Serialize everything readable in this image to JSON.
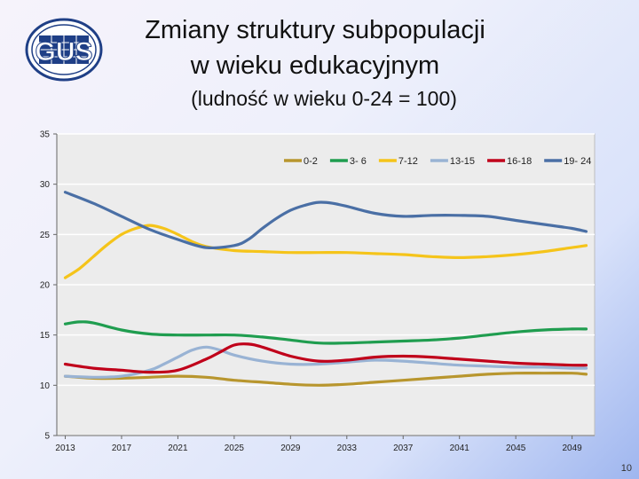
{
  "header": {
    "title_line1": "Zmiany struktury subpopulacji",
    "title_line2": "w wieku edukacyjnym",
    "subtitle": "(ludność w wieku 0-24 = 100)",
    "logo_text": "GUS"
  },
  "page_number": "10",
  "colors": {
    "plot_bg": "#ececec",
    "grid": "#ffffff"
  },
  "chart_data": {
    "type": "line",
    "title": "",
    "xlabel": "",
    "ylabel": "",
    "ylim": [
      5,
      35
    ],
    "yticks": [
      5,
      10,
      15,
      20,
      25,
      30,
      35
    ],
    "xlim": [
      2012.4,
      2050.6
    ],
    "xticks": [
      2013,
      2017,
      2021,
      2025,
      2029,
      2033,
      2037,
      2041,
      2045,
      2049
    ],
    "grid": true,
    "legend_position": "top-right",
    "series": [
      {
        "name": "0-2",
        "color": "#b8962e",
        "x": [
          2013,
          2015,
          2017,
          2019,
          2021,
          2023,
          2025,
          2027,
          2029,
          2031,
          2033,
          2035,
          2037,
          2039,
          2041,
          2043,
          2045,
          2047,
          2049,
          2050
        ],
        "y": [
          10.9,
          10.7,
          10.7,
          10.8,
          10.9,
          10.8,
          10.5,
          10.3,
          10.1,
          10.0,
          10.1,
          10.3,
          10.5,
          10.7,
          10.9,
          11.1,
          11.2,
          11.2,
          11.2,
          11.1
        ]
      },
      {
        "name": "3- 6",
        "color": "#1f9d4f",
        "x": [
          2013,
          2014,
          2015,
          2017,
          2019,
          2021,
          2023,
          2025,
          2027,
          2029,
          2031,
          2033,
          2035,
          2037,
          2039,
          2041,
          2043,
          2045,
          2047,
          2049,
          2050
        ],
        "y": [
          16.1,
          16.3,
          16.2,
          15.5,
          15.1,
          15.0,
          15.0,
          15.0,
          14.8,
          14.5,
          14.2,
          14.2,
          14.3,
          14.4,
          14.5,
          14.7,
          15.0,
          15.3,
          15.5,
          15.6,
          15.6
        ]
      },
      {
        "name": "7-12",
        "color": "#f5c41a",
        "x": [
          2013,
          2014,
          2015,
          2016,
          2017,
          2018,
          2019,
          2020,
          2021,
          2022,
          2023,
          2025,
          2027,
          2029,
          2031,
          2033,
          2035,
          2037,
          2039,
          2041,
          2043,
          2045,
          2047,
          2049,
          2050
        ],
        "y": [
          20.7,
          21.6,
          22.8,
          24.0,
          25.0,
          25.6,
          25.9,
          25.6,
          25.0,
          24.3,
          23.8,
          23.4,
          23.3,
          23.2,
          23.2,
          23.2,
          23.1,
          23.0,
          22.8,
          22.7,
          22.8,
          23.0,
          23.3,
          23.7,
          23.9
        ]
      },
      {
        "name": "13-15",
        "color": "#99b3d4",
        "x": [
          2013,
          2015,
          2017,
          2019,
          2020,
          2021,
          2022,
          2023,
          2024,
          2025,
          2027,
          2029,
          2031,
          2033,
          2035,
          2037,
          2039,
          2041,
          2043,
          2045,
          2047,
          2049,
          2050
        ],
        "y": [
          10.9,
          10.8,
          10.9,
          11.5,
          12.1,
          12.8,
          13.5,
          13.8,
          13.5,
          13.0,
          12.4,
          12.1,
          12.1,
          12.3,
          12.5,
          12.4,
          12.2,
          12.0,
          11.9,
          11.8,
          11.8,
          11.7,
          11.7
        ]
      },
      {
        "name": "16-18",
        "color": "#c0001a",
        "x": [
          2013,
          2015,
          2017,
          2019,
          2021,
          2023,
          2024,
          2025,
          2026,
          2027,
          2029,
          2031,
          2033,
          2035,
          2037,
          2039,
          2041,
          2043,
          2045,
          2047,
          2049,
          2050
        ],
        "y": [
          12.1,
          11.7,
          11.5,
          11.3,
          11.5,
          12.6,
          13.3,
          14.0,
          14.1,
          13.8,
          12.9,
          12.4,
          12.5,
          12.8,
          12.9,
          12.8,
          12.6,
          12.4,
          12.2,
          12.1,
          12.0,
          12.0
        ]
      },
      {
        "name": "19- 24",
        "color": "#4a6fa5",
        "x": [
          2013,
          2015,
          2017,
          2019,
          2021,
          2023,
          2025,
          2026,
          2027,
          2028,
          2029,
          2030,
          2031,
          2032,
          2033,
          2035,
          2037,
          2039,
          2041,
          2043,
          2045,
          2047,
          2049,
          2050
        ],
        "y": [
          29.2,
          28.1,
          26.8,
          25.5,
          24.5,
          23.7,
          23.9,
          24.5,
          25.6,
          26.6,
          27.4,
          27.9,
          28.2,
          28.1,
          27.8,
          27.1,
          26.8,
          26.9,
          26.9,
          26.8,
          26.4,
          26.0,
          25.6,
          25.3
        ]
      }
    ]
  }
}
